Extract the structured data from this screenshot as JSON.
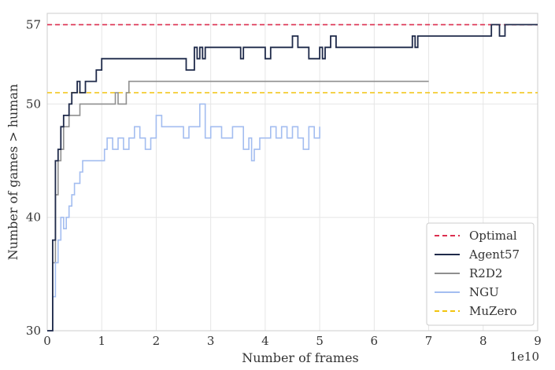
{
  "chart_data": {
    "type": "line",
    "xlabel": "Number of frames",
    "ylabel": "Number of games > human",
    "x_offset_label": "1e10",
    "xlim": [
      0,
      9
    ],
    "ylim": [
      30,
      58
    ],
    "x_ticks": [
      "0",
      "1",
      "2",
      "3",
      "4",
      "5",
      "6",
      "7",
      "8",
      "9"
    ],
    "y_ticks": [
      "30",
      "40",
      "50",
      "57"
    ],
    "grid": true,
    "legend_position": "lower-right",
    "legend": [
      "Optimal",
      "Agent57",
      "R2D2",
      "NGU",
      "MuZero"
    ],
    "colors": {
      "Optimal": "#dc2f4f",
      "Agent57": "#1f2a4a",
      "R2D2": "#8f8f8f",
      "NGU": "#a3bdf0",
      "MuZero": "#f2c40f"
    },
    "series": [
      {
        "name": "Optimal",
        "style": "dashed",
        "x": [
          0,
          9
        ],
        "y": [
          57,
          57
        ]
      },
      {
        "name": "MuZero",
        "style": "dashed",
        "x": [
          0,
          9
        ],
        "y": [
          51,
          51
        ]
      },
      {
        "name": "R2D2",
        "style": "solid",
        "x": [
          0,
          0.1,
          0.15,
          0.2,
          0.25,
          0.3,
          0.35,
          0.4,
          0.45,
          0.5,
          0.6,
          0.65,
          0.8,
          1.0,
          1.2,
          1.25,
          1.3,
          1.45,
          1.5,
          7.0
        ],
        "y": [
          30,
          36,
          42,
          45,
          46,
          48,
          48,
          49,
          49,
          49,
          50,
          50,
          50,
          50,
          50,
          51,
          50,
          51,
          52,
          52
        ]
      },
      {
        "name": "Agent57",
        "style": "solid",
        "x": [
          0,
          0.1,
          0.15,
          0.2,
          0.25,
          0.3,
          0.35,
          0.4,
          0.45,
          0.55,
          0.6,
          0.7,
          0.75,
          0.9,
          1.0,
          1.7,
          2.5,
          2.55,
          2.7,
          2.75,
          2.8,
          2.85,
          2.9,
          2.95,
          3.3,
          3.55,
          3.6,
          4.0,
          4.1,
          4.4,
          4.5,
          4.6,
          4.7,
          4.8,
          5.0,
          5.05,
          5.1,
          5.2,
          5.3,
          5.5,
          6.7,
          6.75,
          6.8,
          8.1,
          8.15,
          8.3,
          8.4,
          9.0
        ],
        "y": [
          30,
          38,
          45,
          46,
          48,
          49,
          49,
          50,
          51,
          52,
          51,
          52,
          52,
          53,
          54,
          54,
          54,
          53,
          55,
          54,
          55,
          54,
          55,
          55,
          55,
          54,
          55,
          54,
          55,
          55,
          56,
          55,
          55,
          54,
          55,
          54,
          55,
          56,
          55,
          55,
          56,
          55,
          56,
          56,
          57,
          56,
          57,
          57
        ]
      },
      {
        "name": "NGU",
        "style": "solid",
        "x": [
          0,
          0.1,
          0.15,
          0.2,
          0.25,
          0.3,
          0.35,
          0.4,
          0.45,
          0.5,
          0.6,
          0.65,
          0.8,
          1.0,
          1.05,
          1.1,
          1.2,
          1.3,
          1.4,
          1.5,
          1.6,
          1.7,
          1.8,
          1.9,
          2.0,
          2.1,
          2.4,
          2.5,
          2.6,
          2.7,
          2.8,
          2.9,
          3.0,
          3.1,
          3.2,
          3.3,
          3.4,
          3.5,
          3.6,
          3.7,
          3.75,
          3.8,
          3.9,
          4.0,
          4.1,
          4.2,
          4.3,
          4.4,
          4.5,
          4.6,
          4.7,
          4.8,
          4.9,
          5.0
        ],
        "y": [
          30,
          33,
          36,
          38,
          40,
          39,
          40,
          41,
          42,
          43,
          44,
          45,
          45,
          45,
          46,
          47,
          46,
          47,
          46,
          47,
          48,
          47,
          46,
          47,
          49,
          48,
          48,
          47,
          48,
          48,
          50,
          47,
          48,
          48,
          47,
          47,
          48,
          48,
          46,
          47,
          45,
          46,
          47,
          47,
          48,
          47,
          48,
          47,
          48,
          47,
          46,
          48,
          47,
          48
        ]
      }
    ]
  }
}
